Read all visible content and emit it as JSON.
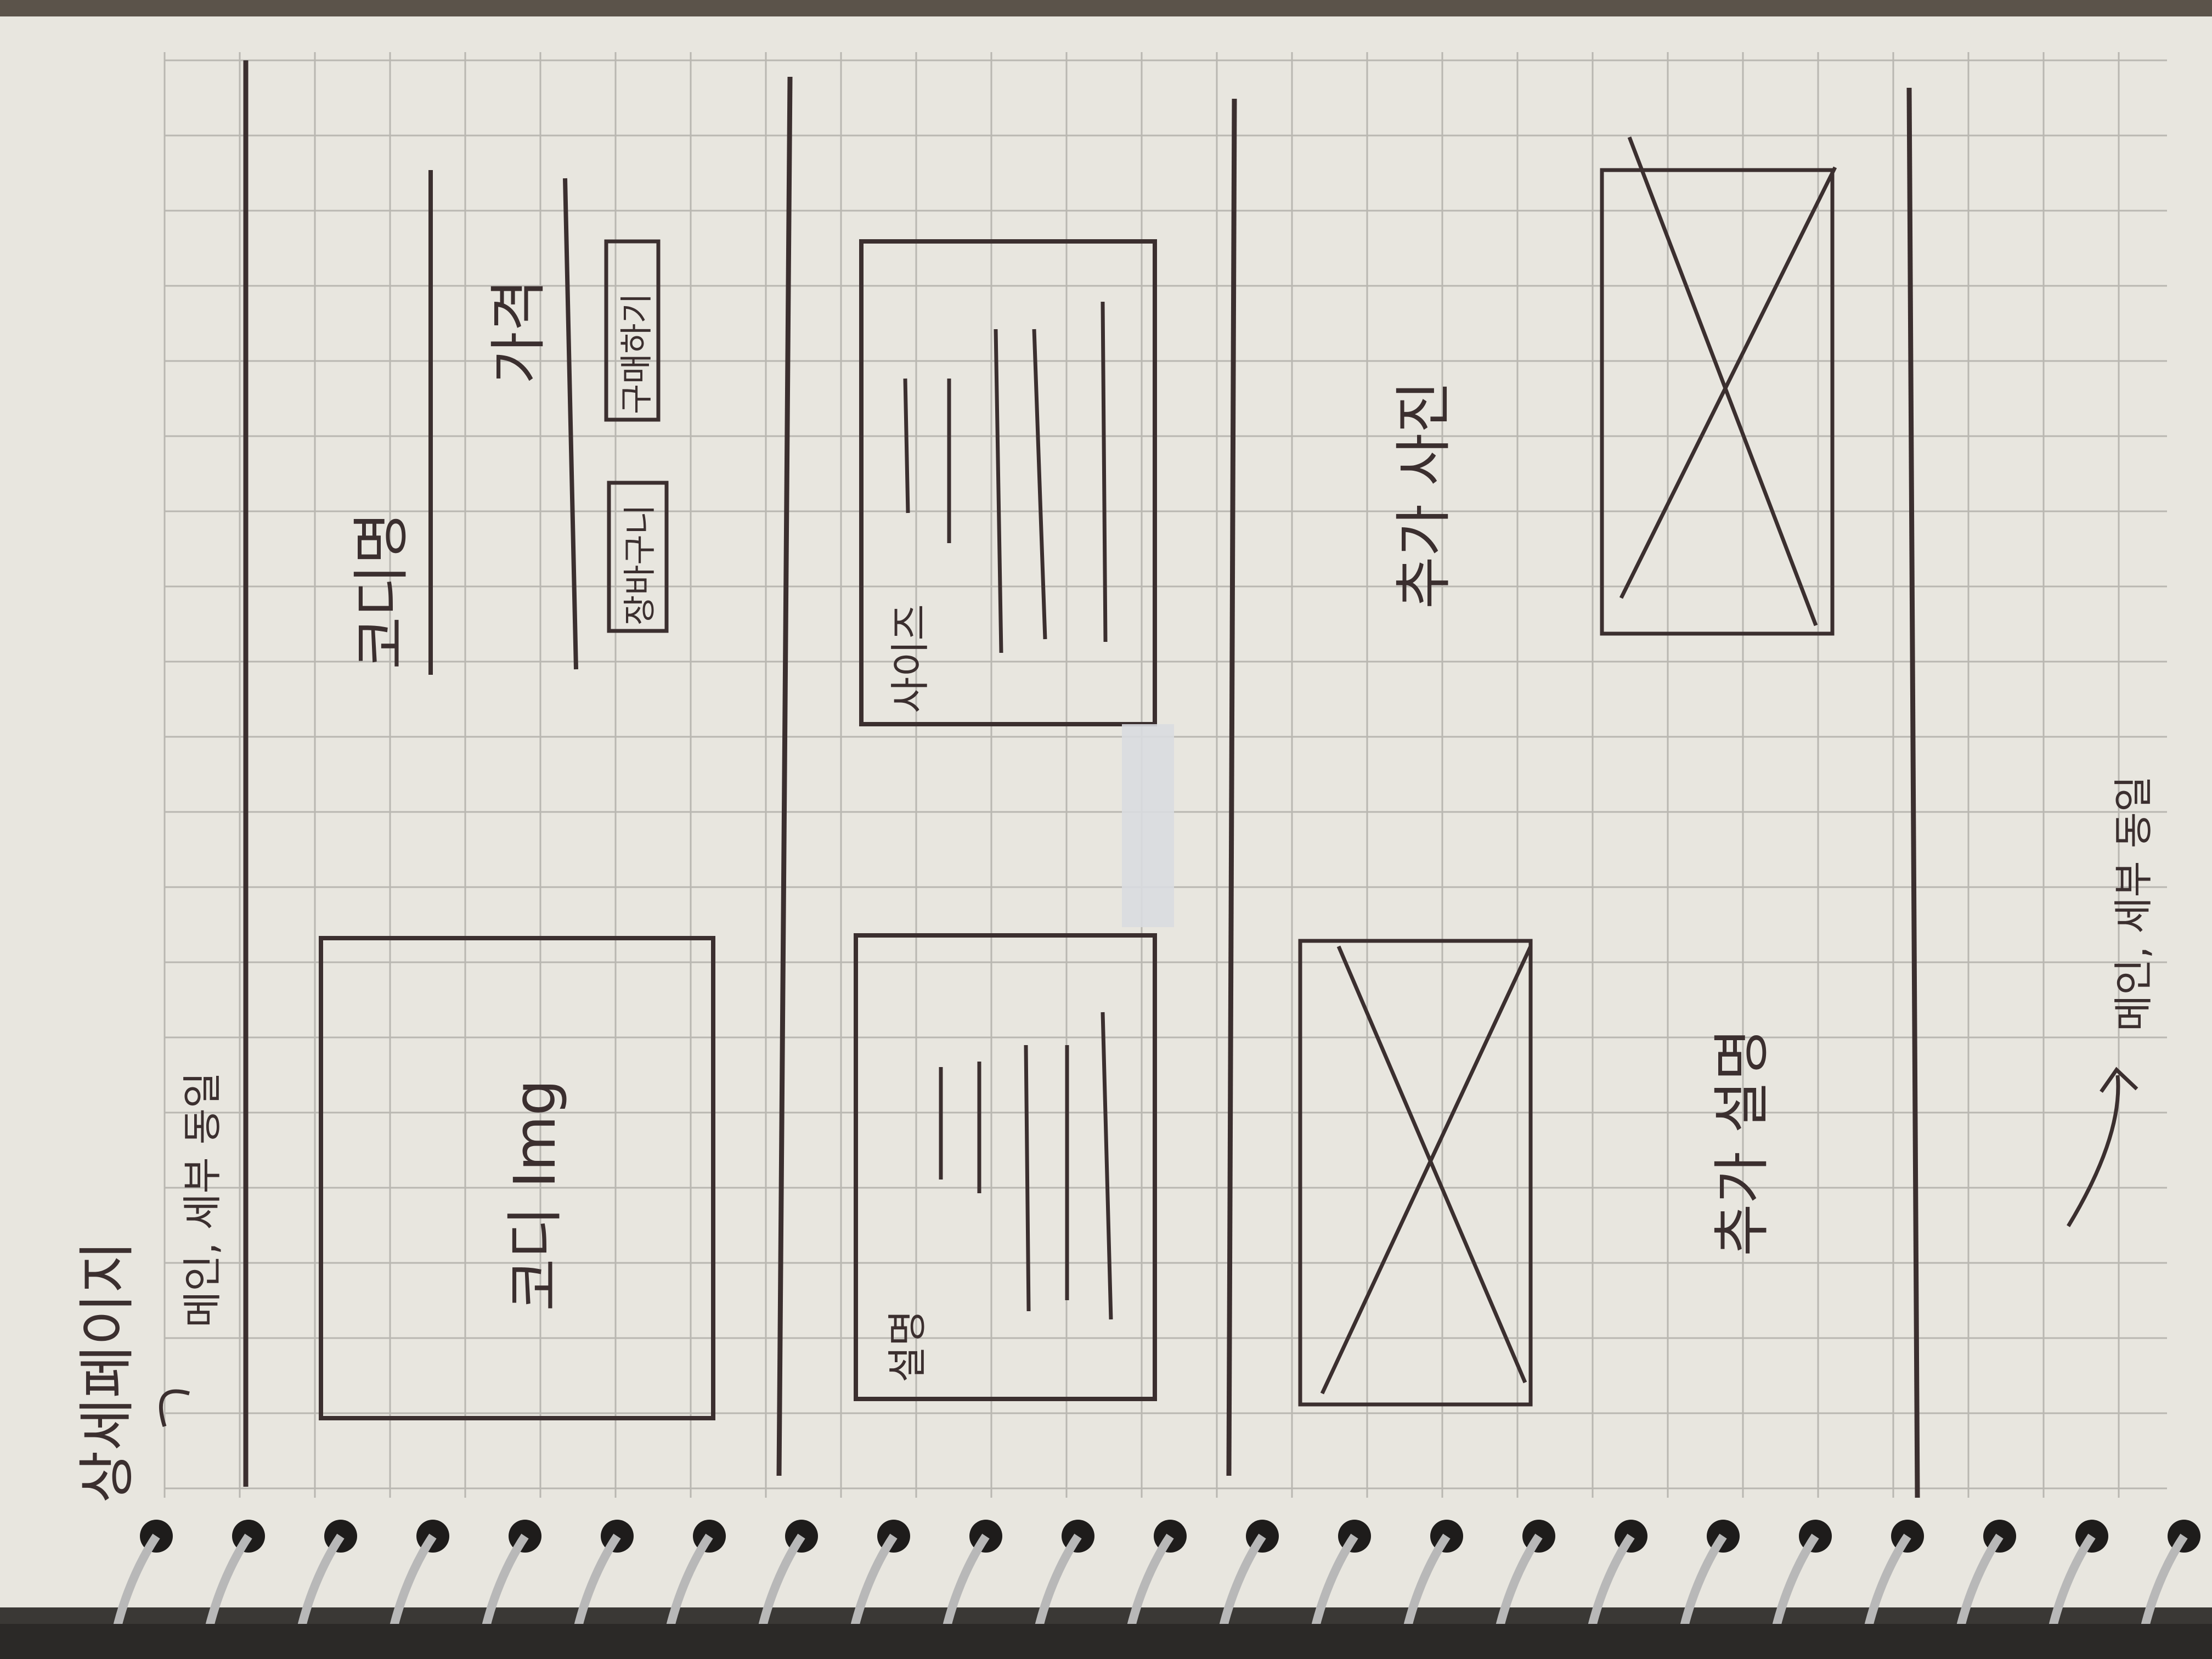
{
  "sketch": {
    "page_title": "상세페이지",
    "subtitle": "메인, 세부 동일",
    "sections": {
      "product": {
        "image_label": "코디 Img",
        "name_label": "코디명",
        "price_label": "가격",
        "buttons": [
          "장바구니",
          "구매하기"
        ]
      },
      "details": {
        "box1_label": "설명",
        "box2_label": "사이즈"
      },
      "extra": {
        "label_a": "추가 설명",
        "label_b": "추가 사진"
      },
      "footer": {
        "note": "메인, 세부 동일"
      }
    },
    "colors": {
      "paper": "#e8e6df",
      "grid": "#b9b7b1",
      "ink": "#3b2f2f"
    }
  }
}
